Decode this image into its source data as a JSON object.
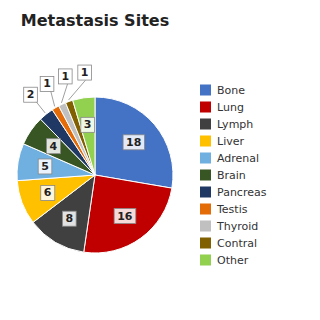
{
  "chart_data": {
    "type": "pie",
    "title": "Metastasis Sites",
    "categories": [
      "Bone",
      "Lung",
      "Lymph",
      "Liver",
      "Adrenal",
      "Brain",
      "Pancreas",
      "Testis",
      "Thyroid",
      "Contral",
      "Other"
    ],
    "values": [
      18,
      16,
      8,
      6,
      5,
      4,
      2,
      1,
      1,
      1,
      3
    ],
    "colors": [
      "#4472C4",
      "#C00000",
      "#404040",
      "#FFC000",
      "#70B0E0",
      "#375623",
      "#1F3864",
      "#E36C09",
      "#C0C0C0",
      "#806000",
      "#92D050"
    ],
    "data_labels": true,
    "legend": "right"
  }
}
